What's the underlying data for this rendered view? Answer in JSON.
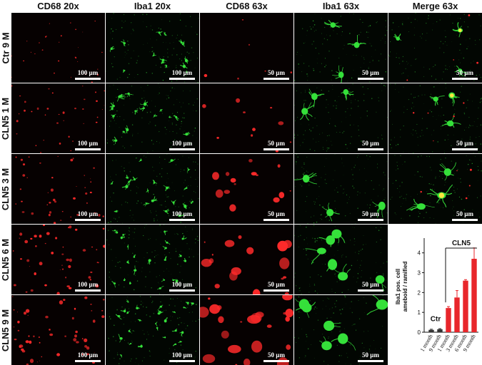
{
  "columns": [
    "CD68 20x",
    "Iba1 20x",
    "CD68 63x",
    "Iba1 63x",
    "Merge 63x"
  ],
  "rows": [
    "Ctr 9 M",
    "CLN5 1 M",
    "CLN5 3 M",
    "CLN5 6 M",
    "CLN5 9 M"
  ],
  "scale_20x": "100 µm",
  "scale_63x": "50 µm",
  "colors": {
    "cd68": "#ff2a2a",
    "iba1": "#35e03a",
    "merge": "#ffe640",
    "bar": "#e8262b",
    "ctr_bar": "#333333"
  },
  "chart_data": {
    "type": "bar",
    "ylabel": "Iba1 pos. cell\nameboid / ramified",
    "yticks": [
      0,
      1,
      2,
      3,
      4
    ],
    "ylim": [
      0,
      4.6
    ],
    "categories": [
      "1 month",
      "9 month",
      "1 month",
      "3 month",
      "6 month",
      "9 month"
    ],
    "values": [
      0.12,
      0.15,
      1.22,
      1.75,
      2.6,
      3.7
    ],
    "errors": [
      0.03,
      0.03,
      0.07,
      0.35,
      0.05,
      0.55
    ],
    "groups": [
      {
        "label": "Ctr",
        "indices": [
          0,
          1
        ]
      },
      {
        "label": "CLN5",
        "indices": [
          2,
          3,
          4,
          5
        ]
      }
    ]
  }
}
